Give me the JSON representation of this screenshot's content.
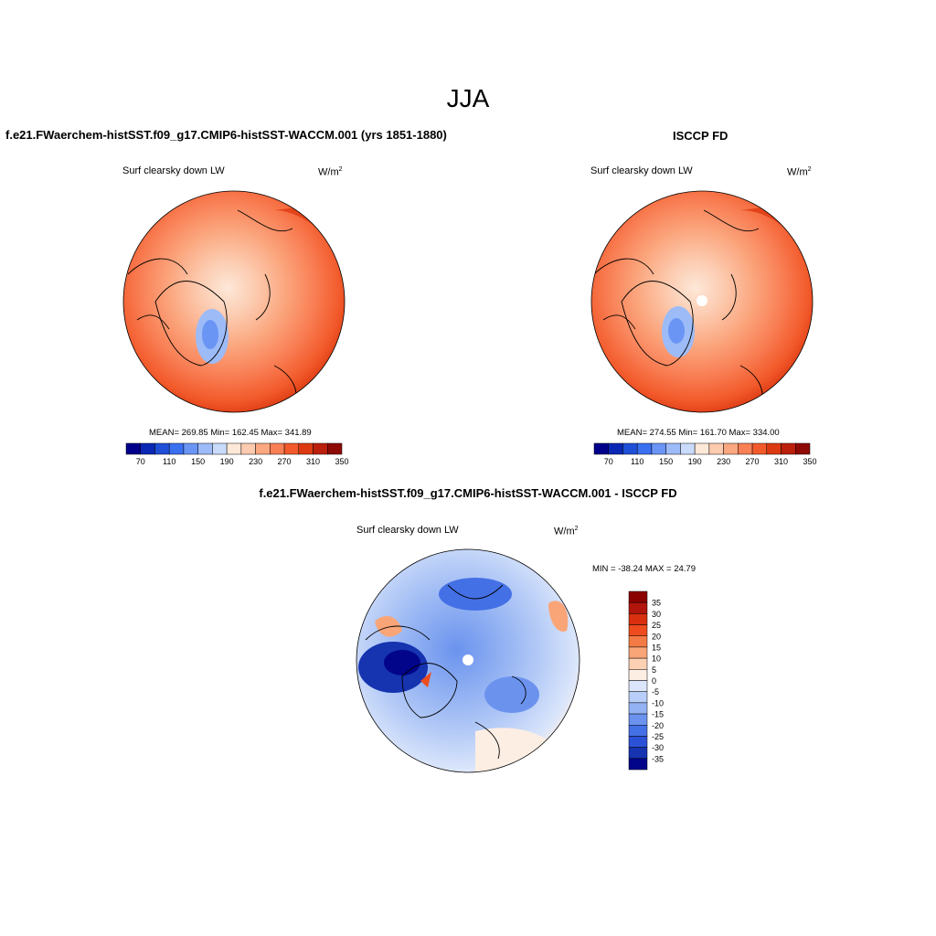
{
  "title": "JJA",
  "panels": {
    "model": {
      "title": "f.e21.FWaerchem-histSST.f09_g17.CMIP6-histSST-WACCM.001 (yrs 1851-1880)",
      "variable": "Surf clearsky down LW",
      "units": "W/m",
      "units_sup": "2",
      "stats": "MEAN= 269.85  Min= 162.45  Max= 341.89"
    },
    "obs": {
      "title": "ISCCP FD",
      "variable": "Surf clearsky down LW",
      "units": "W/m",
      "units_sup": "2",
      "stats": "MEAN= 274.55  Min= 161.70  Max= 334.00"
    },
    "diff": {
      "title": "f.e21.FWaerchem-histSST.f09_g17.CMIP6-histSST-WACCM.001 - ISCCP FD",
      "variable": "Surf clearsky down LW",
      "units": "W/m",
      "units_sup": "2",
      "stats": "MIN = -38.24 MAX =  24.79"
    }
  },
  "colorbar_abs": {
    "colors": [
      "#00008b",
      "#0a28b4",
      "#1f4fd6",
      "#3a6ff0",
      "#6a95f5",
      "#9dbbf7",
      "#c9dbfa",
      "#fde8d8",
      "#fccbb0",
      "#fba77f",
      "#f97f55",
      "#f25a2b",
      "#dd3a12",
      "#bb200c",
      "#8e0a06"
    ],
    "labels": [
      "70",
      "110",
      "150",
      "190",
      "230",
      "270",
      "310",
      "350"
    ]
  },
  "colorbar_diff": {
    "colors": [
      "#8b0000",
      "#b2150c",
      "#d9300f",
      "#ee4c1e",
      "#f47a45",
      "#f9a577",
      "#fcd0b2",
      "#fdeee3",
      "#dbe6fb",
      "#b8cdf7",
      "#93b2f3",
      "#6b93ee",
      "#4470e6",
      "#2b52d6",
      "#1633b0",
      "#02058a"
    ],
    "labels": [
      "35",
      "30",
      "25",
      "20",
      "15",
      "10",
      "5",
      "0",
      "-5",
      "-10",
      "-15",
      "-20",
      "-25",
      "-30",
      "-35"
    ]
  }
}
